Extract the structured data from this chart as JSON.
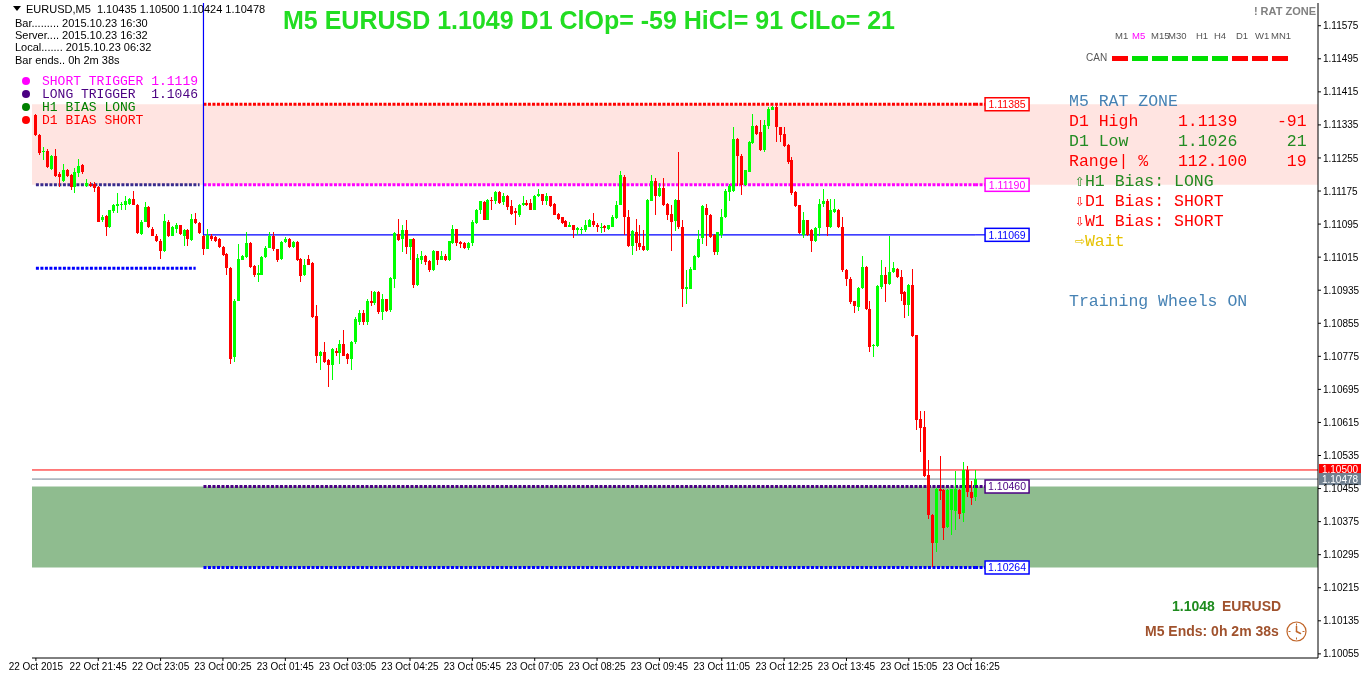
{
  "chart_data": {
    "type": "candlestick",
    "title": "M5 EURUSD 1.1049 D1 ClOp= -59 HiCl= 91 ClLo= 21",
    "x": [
      "2015-10-22T20:25",
      "2015-10-22T20:30",
      "2015-10-22T20:35",
      "2015-10-22T20:40",
      "2015-10-22T20:45",
      "2015-10-22T20:50",
      "2015-10-22T20:55",
      "2015-10-22T21:00",
      "2015-10-22T21:05",
      "2015-10-22T21:10",
      "2015-10-22T21:15",
      "2015-10-22T21:20",
      "2015-10-22T21:25",
      "2015-10-22T21:30",
      "2015-10-22T21:35",
      "2015-10-22T21:40",
      "2015-10-22T21:45",
      "2015-10-22T21:50",
      "2015-10-22T21:55",
      "2015-10-22T22:00",
      "2015-10-22T22:05",
      "2015-10-22T22:10",
      "2015-10-22T22:15",
      "2015-10-22T22:20",
      "2015-10-22T22:25",
      "2015-10-22T22:30",
      "2015-10-22T22:35",
      "2015-10-22T22:40",
      "2015-10-22T22:45",
      "2015-10-22T22:50",
      "2015-10-22T22:55",
      "2015-10-22T23:00",
      "2015-10-22T23:05",
      "2015-10-22T23:10",
      "2015-10-22T23:15",
      "2015-10-22T23:20",
      "2015-10-22T23:25",
      "2015-10-22T23:30",
      "2015-10-22T23:35",
      "2015-10-22T23:40",
      "2015-10-22T23:45",
      "2015-10-22T23:50",
      "2015-10-22T23:55",
      "2015-10-23T00:00",
      "2015-10-23T00:05",
      "2015-10-23T00:10",
      "2015-10-23T00:15",
      "2015-10-23T00:20",
      "2015-10-23T00:25",
      "2015-10-23T00:30",
      "2015-10-23T00:35",
      "2015-10-23T00:40",
      "2015-10-23T00:45",
      "2015-10-23T00:50",
      "2015-10-23T00:55",
      "2015-10-23T01:00",
      "2015-10-23T01:05",
      "2015-10-23T01:10",
      "2015-10-23T01:15",
      "2015-10-23T01:20",
      "2015-10-23T01:25",
      "2015-10-23T01:30",
      "2015-10-23T01:35",
      "2015-10-23T01:40",
      "2015-10-23T01:45",
      "2015-10-23T01:50",
      "2015-10-23T01:55",
      "2015-10-23T02:00",
      "2015-10-23T02:05",
      "2015-10-23T02:10",
      "2015-10-23T02:15",
      "2015-10-23T02:20",
      "2015-10-23T02:25",
      "2015-10-23T02:30",
      "2015-10-23T02:35",
      "2015-10-23T02:40",
      "2015-10-23T02:45",
      "2015-10-23T02:50",
      "2015-10-23T02:55",
      "2015-10-23T03:00",
      "2015-10-23T03:05",
      "2015-10-23T03:10",
      "2015-10-23T03:15",
      "2015-10-23T03:20",
      "2015-10-23T03:25",
      "2015-10-23T03:30",
      "2015-10-23T03:35",
      "2015-10-23T03:40",
      "2015-10-23T03:45",
      "2015-10-23T03:50",
      "2015-10-23T03:55",
      "2015-10-23T04:00",
      "2015-10-23T04:05",
      "2015-10-23T04:10",
      "2015-10-23T04:15",
      "2015-10-23T04:20",
      "2015-10-23T04:25",
      "2015-10-23T04:30",
      "2015-10-23T04:35",
      "2015-10-23T04:40",
      "2015-10-23T04:45",
      "2015-10-23T04:50",
      "2015-10-23T04:55",
      "2015-10-23T05:00",
      "2015-10-23T05:05",
      "2015-10-23T05:10",
      "2015-10-23T05:15",
      "2015-10-23T05:20",
      "2015-10-23T05:25",
      "2015-10-23T05:30",
      "2015-10-23T05:35",
      "2015-10-23T05:40",
      "2015-10-23T05:45",
      "2015-10-23T05:50",
      "2015-10-23T05:55",
      "2015-10-23T06:00",
      "2015-10-23T06:05",
      "2015-10-23T06:10",
      "2015-10-23T06:15",
      "2015-10-23T06:20",
      "2015-10-23T06:25",
      "2015-10-23T06:30",
      "2015-10-23T06:35",
      "2015-10-23T06:40",
      "2015-10-23T06:45",
      "2015-10-23T06:50",
      "2015-10-23T06:55",
      "2015-10-23T07:00",
      "2015-10-23T07:05",
      "2015-10-23T07:10",
      "2015-10-23T07:15",
      "2015-10-23T07:20",
      "2015-10-23T07:25",
      "2015-10-23T07:30",
      "2015-10-23T07:35",
      "2015-10-23T07:40",
      "2015-10-23T07:45",
      "2015-10-23T07:50",
      "2015-10-23T07:55",
      "2015-10-23T08:00",
      "2015-10-23T08:05",
      "2015-10-23T08:10",
      "2015-10-23T08:15",
      "2015-10-23T08:20",
      "2015-10-23T08:25",
      "2015-10-23T08:30",
      "2015-10-23T08:35",
      "2015-10-23T08:40",
      "2015-10-23T08:45",
      "2015-10-23T08:50",
      "2015-10-23T08:55",
      "2015-10-23T09:00",
      "2015-10-23T09:05",
      "2015-10-23T09:10",
      "2015-10-23T09:15",
      "2015-10-23T09:20",
      "2015-10-23T09:25",
      "2015-10-23T09:30",
      "2015-10-23T09:35",
      "2015-10-23T09:40",
      "2015-10-23T09:45",
      "2015-10-23T09:50",
      "2015-10-23T09:55",
      "2015-10-23T10:00",
      "2015-10-23T10:05",
      "2015-10-23T10:10",
      "2015-10-23T10:15",
      "2015-10-23T10:20",
      "2015-10-23T10:25",
      "2015-10-23T10:30",
      "2015-10-23T10:35",
      "2015-10-23T10:40",
      "2015-10-23T10:45",
      "2015-10-23T10:50",
      "2015-10-23T10:55",
      "2015-10-23T11:00",
      "2015-10-23T11:05",
      "2015-10-23T11:10",
      "2015-10-23T11:15",
      "2015-10-23T11:20",
      "2015-10-23T11:25",
      "2015-10-23T11:30",
      "2015-10-23T11:35",
      "2015-10-23T11:40",
      "2015-10-23T11:45",
      "2015-10-23T11:50",
      "2015-10-23T11:55",
      "2015-10-23T12:00",
      "2015-10-23T12:05",
      "2015-10-23T12:10",
      "2015-10-23T12:15",
      "2015-10-23T12:20",
      "2015-10-23T12:25",
      "2015-10-23T12:30",
      "2015-10-23T12:35",
      "2015-10-23T12:40",
      "2015-10-23T12:45",
      "2015-10-23T12:50",
      "2015-10-23T12:55",
      "2015-10-23T13:00",
      "2015-10-23T13:05",
      "2015-10-23T13:10",
      "2015-10-23T13:15",
      "2015-10-23T13:20",
      "2015-10-23T13:25",
      "2015-10-23T13:30",
      "2015-10-23T13:35",
      "2015-10-23T13:40",
      "2015-10-23T13:45",
      "2015-10-23T13:50",
      "2015-10-23T13:55",
      "2015-10-23T14:00",
      "2015-10-23T14:05",
      "2015-10-23T14:10",
      "2015-10-23T14:15",
      "2015-10-23T14:20",
      "2015-10-23T14:25",
      "2015-10-23T14:30",
      "2015-10-23T14:35",
      "2015-10-23T14:40",
      "2015-10-23T14:45",
      "2015-10-23T14:50",
      "2015-10-23T14:55",
      "2015-10-23T15:00",
      "2015-10-23T15:05",
      "2015-10-23T15:10",
      "2015-10-23T15:15",
      "2015-10-23T15:20",
      "2015-10-23T15:25",
      "2015-10-23T15:30",
      "2015-10-23T15:35",
      "2015-10-23T15:40",
      "2015-10-23T15:45",
      "2015-10-23T15:50",
      "2015-10-23T15:55",
      "2015-10-23T16:00",
      "2015-10-23T16:05",
      "2015-10-23T16:10",
      "2015-10-23T16:15",
      "2015-10-23T16:20",
      "2015-10-23T16:25",
      "2015-10-23T16:30"
    ],
    "ohlc": [
      [
        1.11359,
        1.11362,
        1.11309,
        1.11311
      ],
      [
        1.11311,
        1.11313,
        1.11263,
        1.11267
      ],
      [
        1.11269,
        1.11281,
        1.11249,
        1.11273
      ],
      [
        1.11273,
        1.11277,
        1.1123,
        1.11233
      ],
      [
        1.11229,
        1.11263,
        1.11225,
        1.11259
      ],
      [
        1.11259,
        1.11277,
        1.11209,
        1.11211
      ],
      [
        1.11217,
        1.11221,
        1.11184,
        1.11209
      ],
      [
        1.11199,
        1.11241,
        1.11196,
        1.11225
      ],
      [
        1.11225,
        1.11229,
        1.11209,
        1.11211
      ],
      [
        1.11214,
        1.11217,
        1.11178,
        1.11184
      ],
      [
        1.11184,
        1.1123,
        1.11171,
        1.11222
      ],
      [
        1.11219,
        1.11253,
        1.11209,
        1.11235
      ],
      [
        1.11238,
        1.11241,
        1.11217,
        1.11221
      ],
      [
        1.11188,
        1.11205,
        1.11184,
        1.11194
      ],
      [
        1.11192,
        1.11196,
        1.11184,
        1.11188
      ],
      [
        1.11192,
        1.11197,
        1.11172,
        1.11182
      ],
      [
        1.11184,
        1.11187,
        1.111,
        1.11101
      ],
      [
        1.11104,
        1.11116,
        1.11101,
        1.11113
      ],
      [
        1.11114,
        1.11116,
        1.11066,
        1.11088
      ],
      [
        1.11088,
        1.1113,
        1.11085,
        1.11128
      ],
      [
        1.11126,
        1.11144,
        1.11122,
        1.11142
      ],
      [
        1.11138,
        1.11171,
        1.11121,
        1.11143
      ],
      [
        1.1114,
        1.11148,
        1.11128,
        1.11144
      ],
      [
        1.1114,
        1.11162,
        1.1113,
        1.11151
      ],
      [
        1.11144,
        1.11158,
        1.1114,
        1.11155
      ],
      [
        1.11155,
        1.11174,
        1.1114,
        1.11142
      ],
      [
        1.11142,
        1.11143,
        1.11071,
        1.11074
      ],
      [
        1.11071,
        1.11104,
        1.11069,
        1.11101
      ],
      [
        1.11101,
        1.11148,
        1.111,
        1.11136
      ],
      [
        1.11136,
        1.11138,
        1.11085,
        1.11088
      ],
      [
        1.11084,
        1.11088,
        1.11066,
        1.11067
      ],
      [
        1.11067,
        1.11071,
        1.11051,
        1.11054
      ],
      [
        1.11055,
        1.11059,
        1.11011,
        1.11029
      ],
      [
        1.11029,
        1.1112,
        1.11027,
        1.11103
      ],
      [
        1.11101,
        1.11104,
        1.11063,
        1.11067
      ],
      [
        1.11067,
        1.1109,
        1.11066,
        1.11088
      ],
      [
        1.11084,
        1.11098,
        1.11074,
        1.11092
      ],
      [
        1.11092,
        1.11093,
        1.11069,
        1.11071
      ],
      [
        1.11067,
        1.11084,
        1.11041,
        1.11081
      ],
      [
        1.11081,
        1.11084,
        1.11041,
        1.11058
      ],
      [
        1.11057,
        1.1112,
        1.11055,
        1.11108
      ],
      [
        1.11108,
        1.11122,
        1.11095,
        1.11097
      ],
      [
        1.11097,
        1.111,
        1.11071,
        1.11074
      ],
      [
        1.11067,
        1.11069,
        1.11021,
        1.11034
      ],
      [
        1.11035,
        1.11084,
        1.11034,
        1.11069
      ],
      [
        1.11067,
        1.11071,
        1.11055,
        1.11059
      ],
      [
        1.11063,
        1.11066,
        1.11051,
        1.11055
      ],
      [
        1.11059,
        1.11061,
        1.11037,
        1.11039
      ],
      [
        1.11039,
        1.11042,
        1.11018,
        1.11021
      ],
      [
        1.11022,
        1.11024,
        1.10971,
        1.10988
      ],
      [
        1.10988,
        1.10991,
        1.10757,
        1.10769
      ],
      [
        1.10773,
        1.10914,
        1.10761,
        1.1091
      ],
      [
        1.1091,
        1.11047,
        1.10908,
        1.11011
      ],
      [
        1.11009,
        1.11019,
        1.11007,
        1.11017
      ],
      [
        1.11015,
        1.11076,
        1.11013,
        1.1105
      ],
      [
        1.1105,
        1.11051,
        1.10988,
        1.10991
      ],
      [
        1.10993,
        1.10995,
        1.10967,
        1.10971
      ],
      [
        1.10972,
        1.10995,
        1.10955,
        1.10977
      ],
      [
        1.10972,
        1.11017,
        1.10971,
        1.11015
      ],
      [
        1.11015,
        1.11041,
        1.11013,
        1.11038
      ],
      [
        1.11038,
        1.11076,
        1.11037,
        1.11066
      ],
      [
        1.11066,
        1.11076,
        1.11031,
        1.11034
      ],
      [
        1.11034,
        1.11035,
        1.11003,
        1.11009
      ],
      [
        1.11011,
        1.11055,
        1.11009,
        1.11051
      ],
      [
        1.11051,
        1.11063,
        1.1105,
        1.11059
      ],
      [
        1.11059,
        1.11061,
        1.11037,
        1.11039
      ],
      [
        1.11039,
        1.11055,
        1.11037,
        1.11051
      ],
      [
        1.11051,
        1.11055,
        1.11005,
        1.11007
      ],
      [
        1.11011,
        1.11013,
        1.10956,
        1.10969
      ],
      [
        1.10971,
        1.11011,
        1.10969,
        1.10997
      ],
      [
        1.11011,
        1.11021,
        1.10995,
        1.10997
      ],
      [
        1.11001,
        1.11003,
        1.10868,
        1.1087
      ],
      [
        1.10872,
        1.109,
        1.1076,
        1.10777
      ],
      [
        1.10777,
        1.10789,
        1.10741,
        1.10785
      ],
      [
        1.10785,
        1.1081,
        1.1076,
        1.10761
      ],
      [
        1.10765,
        1.10769,
        1.10701,
        1.10753
      ],
      [
        1.10753,
        1.10794,
        1.10717,
        1.10792
      ],
      [
        1.10789,
        1.10794,
        1.10777,
        1.10784
      ],
      [
        1.10784,
        1.10814,
        1.10757,
        1.10806
      ],
      [
        1.10806,
        1.10838,
        1.10775,
        1.10777
      ],
      [
        1.10781,
        1.10784,
        1.10757,
        1.10769
      ],
      [
        1.10769,
        1.10812,
        1.10741,
        1.1081
      ],
      [
        1.1081,
        1.1087,
        1.10805,
        1.10866
      ],
      [
        1.10858,
        1.10886,
        1.1085,
        1.1088
      ],
      [
        1.1088,
        1.10886,
        1.1085,
        1.10858
      ],
      [
        1.10858,
        1.10913,
        1.10852,
        1.1091
      ],
      [
        1.1091,
        1.10934,
        1.10896,
        1.10904
      ],
      [
        1.10904,
        1.10932,
        1.109,
        1.1093
      ],
      [
        1.1093,
        1.10932,
        1.10878,
        1.10882
      ],
      [
        1.10882,
        1.10925,
        1.10862,
        1.10913
      ],
      [
        1.10913,
        1.10914,
        1.10882,
        1.10885
      ],
      [
        1.10886,
        1.10968,
        1.10882,
        1.10964
      ],
      [
        1.10963,
        1.11076,
        1.1094,
        1.11073
      ],
      [
        1.11072,
        1.11108,
        1.11055,
        1.11057
      ],
      [
        1.11059,
        1.11092,
        1.11027,
        1.1108
      ],
      [
        1.1108,
        1.11104,
        1.11022,
        1.11039
      ],
      [
        1.11039,
        1.1106,
        1.11007,
        1.11059
      ],
      [
        1.11059,
        1.11061,
        1.1094,
        1.10947
      ],
      [
        1.10947,
        1.11022,
        1.10944,
        1.11013
      ],
      [
        1.11009,
        1.11029,
        1.10999,
        1.11017
      ],
      [
        1.11017,
        1.11019,
        1.10995,
        1.11003
      ],
      [
        1.11005,
        1.11007,
        1.10979,
        1.10983
      ],
      [
        1.10985,
        1.11033,
        1.10981,
        1.11031
      ],
      [
        1.11029,
        1.11031,
        1.10995,
        1.11009
      ],
      [
        1.11009,
        1.11029,
        1.11007,
        1.11017
      ],
      [
        1.11017,
        1.11022,
        1.11005,
        1.11009
      ],
      [
        1.11009,
        1.11055,
        1.11005,
        1.11053
      ],
      [
        1.11049,
        1.11092,
        1.11047,
        1.11082
      ],
      [
        1.11082,
        1.11084,
        1.11041,
        1.11049
      ],
      [
        1.11051,
        1.11054,
        1.11038,
        1.11047
      ],
      [
        1.1105,
        1.11051,
        1.11035,
        1.11037
      ],
      [
        1.11037,
        1.11051,
        1.11033,
        1.1105
      ],
      [
        1.11049,
        1.11104,
        1.11041,
        1.11101
      ],
      [
        1.11097,
        1.11132,
        1.11095,
        1.1113
      ],
      [
        1.11128,
        1.11152,
        1.1112,
        1.1115
      ],
      [
        1.11148,
        1.1115,
        1.11104,
        1.11106
      ],
      [
        1.11106,
        1.11156,
        1.11104,
        1.11154
      ],
      [
        1.11154,
        1.1116,
        1.11128,
        1.1115
      ],
      [
        1.11152,
        1.11176,
        1.11144,
        1.11172
      ],
      [
        1.11172,
        1.11174,
        1.11144,
        1.11146
      ],
      [
        1.11148,
        1.1117,
        1.1114,
        1.11164
      ],
      [
        1.11164,
        1.11166,
        1.11128,
        1.11136
      ],
      [
        1.11138,
        1.11154,
        1.11118,
        1.1112
      ],
      [
        1.11126,
        1.11134,
        1.11092,
        1.11121
      ],
      [
        1.11118,
        1.11144,
        1.11113,
        1.11142
      ],
      [
        1.11142,
        1.11164,
        1.11138,
        1.11146
      ],
      [
        1.11146,
        1.11154,
        1.11138,
        1.1114
      ],
      [
        1.11146,
        1.11156,
        1.11128,
        1.1113
      ],
      [
        1.1113,
        1.11166,
        1.11128,
        1.11164
      ],
      [
        1.11163,
        1.1118,
        1.1116,
        1.11167
      ],
      [
        1.11167,
        1.11168,
        1.11142,
        1.11152
      ],
      [
        1.11152,
        1.1117,
        1.1114,
        1.11162
      ],
      [
        1.11162,
        1.11164,
        1.11136,
        1.11138
      ],
      [
        1.11144,
        1.11146,
        1.11116,
        1.11117
      ],
      [
        1.11119,
        1.11121,
        1.11105,
        1.11108
      ],
      [
        1.11112,
        1.11113,
        1.11096,
        1.11097
      ],
      [
        1.11102,
        1.11104,
        1.11088,
        1.11089
      ],
      [
        1.11089,
        1.111,
        1.11088,
        1.11092
      ],
      [
        1.11092,
        1.11094,
        1.11061,
        1.1108
      ],
      [
        1.1108,
        1.11089,
        1.11068,
        1.11085
      ],
      [
        1.1108,
        1.11089,
        1.11072,
        1.11084
      ],
      [
        1.1108,
        1.11104,
        1.11076,
        1.11092
      ],
      [
        1.11089,
        1.11108,
        1.11088,
        1.11104
      ],
      [
        1.11102,
        1.11121,
        1.11089,
        1.11094
      ],
      [
        1.11094,
        1.11097,
        1.11077,
        1.11089
      ],
      [
        1.11088,
        1.11097,
        1.11073,
        1.11089
      ],
      [
        1.1109,
        1.11094,
        1.11076,
        1.11085
      ],
      [
        1.11084,
        1.11094,
        1.1108,
        1.11092
      ],
      [
        1.11089,
        1.11118,
        1.11088,
        1.11112
      ],
      [
        1.11109,
        1.11152,
        1.11108,
        1.11142
      ],
      [
        1.11142,
        1.11223,
        1.1114,
        1.11213
      ],
      [
        1.1121,
        1.11213,
        1.11068,
        1.11112
      ],
      [
        1.11112,
        1.11128,
        1.11039,
        1.11041
      ],
      [
        1.11041,
        1.1108,
        1.11019,
        1.11078
      ],
      [
        1.11077,
        1.11108,
        1.1103,
        1.1105
      ],
      [
        1.1105,
        1.11092,
        1.11033,
        1.11039
      ],
      [
        1.11041,
        1.1108,
        1.1103,
        1.11033
      ],
      [
        1.11033,
        1.11156,
        1.11031,
        1.11154
      ],
      [
        1.11152,
        1.11213,
        1.1115,
        1.112
      ],
      [
        1.112,
        1.11207,
        1.11116,
        1.11164
      ],
      [
        1.11162,
        1.11195,
        1.1116,
        1.11183
      ],
      [
        1.11183,
        1.11207,
        1.11138,
        1.1114
      ],
      [
        1.11144,
        1.11146,
        1.11106,
        1.11116
      ],
      [
        1.1112,
        1.1114,
        1.11031,
        1.11101
      ],
      [
        1.11102,
        1.11156,
        1.11078,
        1.11154
      ],
      [
        1.11154,
        1.11269,
        1.11084,
        1.11088
      ],
      [
        1.11088,
        1.11104,
        1.10894,
        1.10939
      ],
      [
        1.10939,
        1.10983,
        1.10902,
        1.10942
      ],
      [
        1.10939,
        1.10991,
        1.10937,
        1.10987
      ],
      [
        1.10985,
        1.11021,
        1.10983,
        1.11017
      ],
      [
        1.11015,
        1.1108,
        1.11013,
        1.11059
      ],
      [
        1.11061,
        1.11142,
        1.11047,
        1.11138
      ],
      [
        1.11135,
        1.11144,
        1.11043,
        1.11116
      ],
      [
        1.11118,
        1.1112,
        1.11061,
        1.11063
      ],
      [
        1.11069,
        1.11071,
        1.11021,
        1.11027
      ],
      [
        1.11027,
        1.11077,
        1.11019,
        1.11076
      ],
      [
        1.11069,
        1.11132,
        1.11061,
        1.11113
      ],
      [
        1.11112,
        1.11179,
        1.11109,
        1.11176
      ],
      [
        1.11172,
        1.11192,
        1.11152,
        1.11188
      ],
      [
        1.11174,
        1.11329,
        1.11172,
        1.11301
      ],
      [
        1.11301,
        1.11303,
        1.11188,
        1.11259
      ],
      [
        1.11259,
        1.11265,
        1.11166,
        1.1119
      ],
      [
        1.1119,
        1.11227,
        1.11188,
        1.11225
      ],
      [
        1.11222,
        1.11295,
        1.11221,
        1.11293
      ],
      [
        1.11292,
        1.11362,
        1.11289,
        1.11333
      ],
      [
        1.11333,
        1.11335,
        1.11311,
        1.11313
      ],
      [
        1.11317,
        1.11346,
        1.11273,
        1.11275
      ],
      [
        1.11275,
        1.11346,
        1.11269,
        1.11335
      ],
      [
        1.11333,
        1.11378,
        1.11325,
        1.11374
      ],
      [
        1.11372,
        1.1138,
        1.1137,
        1.11378
      ],
      [
        1.11378,
        1.11385,
        1.11293,
        1.11329
      ],
      [
        1.11329,
        1.11331,
        1.11293,
        1.11311
      ],
      [
        1.11313,
        1.11329,
        1.11281,
        1.11285
      ],
      [
        1.11287,
        1.11289,
        1.11241,
        1.11246
      ],
      [
        1.11251,
        1.11257,
        1.11166,
        1.11171
      ],
      [
        1.11172,
        1.11174,
        1.11136,
        1.11138
      ],
      [
        1.1114,
        1.11142,
        1.11071,
        1.11073
      ],
      [
        1.11069,
        1.11124,
        1.11061,
        1.11104
      ],
      [
        1.11104,
        1.11106,
        1.11067,
        1.11069
      ],
      [
        1.1108,
        1.11084,
        1.11027,
        1.11055
      ],
      [
        1.11055,
        1.11088,
        1.11051,
        1.11085
      ],
      [
        1.11085,
        1.11155,
        1.11067,
        1.11144
      ],
      [
        1.11144,
        1.11179,
        1.11136,
        1.11152
      ],
      [
        1.11152,
        1.11155,
        1.11067,
        1.11088
      ],
      [
        1.11088,
        1.11155,
        1.11085,
        1.11128
      ],
      [
        1.11124,
        1.11155,
        1.11122,
        1.11132
      ],
      [
        1.1113,
        1.11132,
        1.11085,
        1.11088
      ],
      [
        1.11089,
        1.11112,
        1.1098,
        1.10983
      ],
      [
        1.10983,
        1.10987,
        1.10945,
        1.10963
      ],
      [
        1.10963,
        1.10967,
        1.10902,
        1.10906
      ],
      [
        1.10908,
        1.1091,
        1.10879,
        1.10897
      ],
      [
        1.10895,
        1.10943,
        1.10884,
        1.1094
      ],
      [
        1.1094,
        1.11017,
        1.10939,
        1.10991
      ],
      [
        1.10991,
        1.10993,
        1.10888,
        1.1089
      ],
      [
        1.1089,
        1.1091,
        1.10785,
        1.10797
      ],
      [
        1.108,
        1.10806,
        1.10773,
        1.10803
      ],
      [
        1.108,
        1.10947,
        1.10797,
        1.10944
      ],
      [
        1.10942,
        1.11009,
        1.10939,
        1.10971
      ],
      [
        1.10971,
        1.10991,
        1.10906,
        1.10951
      ],
      [
        1.10951,
        1.11067,
        1.10947,
        1.1098
      ],
      [
        1.1098,
        1.11003,
        1.10977,
        1.10988
      ],
      [
        1.10987,
        1.10988,
        1.10964,
        1.10967
      ],
      [
        1.10967,
        1.10985,
        1.1091,
        1.10926
      ],
      [
        1.1093,
        1.10932,
        1.10868,
        1.10898
      ],
      [
        1.10898,
        1.10951,
        1.10872,
        1.10948
      ],
      [
        1.10948,
        1.10987,
        1.10822,
        1.10824
      ],
      [
        1.10826,
        1.10827,
        1.10596,
        1.1062
      ],
      [
        1.10624,
        1.10642,
        1.10544,
        1.10602
      ],
      [
        1.10604,
        1.10642,
        1.10483,
        1.10486
      ],
      [
        1.10487,
        1.10523,
        1.10382,
        1.10392
      ],
      [
        1.10392,
        1.10394,
        1.10264,
        1.10324
      ],
      [
        1.10324,
        1.10457,
        1.10302,
        1.10455
      ],
      [
        1.10455,
        1.10534,
        1.10427,
        1.10448
      ],
      [
        1.10451,
        1.10453,
        1.1033,
        1.1036
      ],
      [
        1.10362,
        1.10453,
        1.1036,
        1.10451
      ],
      [
        1.10403,
        1.10455,
        1.10342,
        1.10453
      ],
      [
        1.10401,
        1.10497,
        1.10354,
        1.10453
      ],
      [
        1.10451,
        1.10453,
        1.10382,
        1.10394
      ],
      [
        1.10397,
        1.10519,
        1.10374,
        1.10501
      ],
      [
        1.10501,
        1.1051,
        1.10435,
        1.10447
      ],
      [
        1.10447,
        1.10473,
        1.10416,
        1.10432
      ],
      [
        1.10435,
        1.105,
        1.10424,
        1.10478
      ]
    ],
    "colors": [
      "#ff0000",
      "#ff0000",
      "#00ff00",
      "#ff0000",
      "#00ff00",
      "#ff0000",
      "#ff0000",
      "#00ff00",
      "#ff0000",
      "#ff0000",
      "#00ff00",
      "#00ff00",
      "#ff0000",
      "#00ff00",
      "#ff0000",
      "#ff0000",
      "#ff0000",
      "#00ff00",
      "#ff0000",
      "#00ff00",
      "#00ff00",
      "#00ff00",
      "#00ff00",
      "#00ff00",
      "#00ff00",
      "#ff0000",
      "#ff0000",
      "#00ff00",
      "#00ff00",
      "#ff0000",
      "#ff0000",
      "#ff0000",
      "#ff0000",
      "#00ff00",
      "#ff0000",
      "#00ff00",
      "#00ff00",
      "#ff0000",
      "#00ff00",
      "#ff0000",
      "#00ff00",
      "#ff0000",
      "#ff0000",
      "#ff0000",
      "#00ff00",
      "#ff0000",
      "#ff0000",
      "#ff0000",
      "#ff0000",
      "#ff0000",
      "#ff0000",
      "#00ff00",
      "#00ff00",
      "#00ff00",
      "#00ff00",
      "#ff0000",
      "#ff0000",
      "#00ff00",
      "#00ff00",
      "#00ff00",
      "#00ff00",
      "#ff0000",
      "#ff0000",
      "#00ff00",
      "#00ff00",
      "#ff0000",
      "#00ff00",
      "#ff0000",
      "#ff0000",
      "#00ff00",
      "#ff0000",
      "#ff0000",
      "#ff0000",
      "#00ff00",
      "#ff0000",
      "#ff0000",
      "#00ff00",
      "#ff0000",
      "#00ff00",
      "#ff0000",
      "#ff0000",
      "#00ff00",
      "#00ff00",
      "#00ff00",
      "#ff0000",
      "#00ff00",
      "#ff0000",
      "#00ff00",
      "#ff0000",
      "#00ff00",
      "#ff0000",
      "#00ff00",
      "#00ff00",
      "#ff0000",
      "#00ff00",
      "#ff0000",
      "#00ff00",
      "#ff0000",
      "#00ff00",
      "#00ff00",
      "#ff0000",
      "#ff0000",
      "#00ff00",
      "#ff0000",
      "#00ff00",
      "#ff0000",
      "#00ff00",
      "#00ff00",
      "#ff0000",
      "#ff0000",
      "#ff0000",
      "#00ff00",
      "#00ff00",
      "#00ff00",
      "#00ff00",
      "#ff0000",
      "#00ff00",
      "#ff0000",
      "#00ff00",
      "#ff0000",
      "#00ff00",
      "#ff0000",
      "#ff0000",
      "#ff0000",
      "#00ff00",
      "#00ff00",
      "#ff0000",
      "#ff0000",
      "#00ff00",
      "#00ff00",
      "#ff0000",
      "#00ff00",
      "#ff0000",
      "#ff0000",
      "#ff0000",
      "#ff0000",
      "#ff0000",
      "#00ff00",
      "#ff0000",
      "#00ff00",
      "#00ff00",
      "#00ff00",
      "#00ff00",
      "#ff0000",
      "#ff0000",
      "#00ff00",
      "#ff0000",
      "#00ff00",
      "#00ff00",
      "#00ff00",
      "#00ff00",
      "#ff0000",
      "#ff0000",
      "#00ff00",
      "#ff0000",
      "#ff0000",
      "#ff0000",
      "#00ff00",
      "#00ff00",
      "#ff0000",
      "#00ff00",
      "#ff0000",
      "#ff0000",
      "#ff0000",
      "#00ff00",
      "#ff0000",
      "#ff0000",
      "#00ff00",
      "#00ff00",
      "#00ff00",
      "#00ff00",
      "#00ff00",
      "#ff0000",
      "#ff0000",
      "#ff0000",
      "#00ff00",
      "#00ff00",
      "#00ff00",
      "#00ff00",
      "#00ff00",
      "#ff0000",
      "#ff0000",
      "#00ff00",
      "#00ff00",
      "#00ff00",
      "#ff0000",
      "#ff0000",
      "#00ff00",
      "#00ff00",
      "#00ff00",
      "#ff0000",
      "#ff0000",
      "#ff0000",
      "#ff0000",
      "#ff0000",
      "#ff0000",
      "#ff0000",
      "#00ff00",
      "#ff0000",
      "#ff0000",
      "#00ff00",
      "#00ff00",
      "#00ff00",
      "#ff0000",
      "#00ff00",
      "#00ff00",
      "#ff0000",
      "#ff0000",
      "#ff0000",
      "#ff0000",
      "#ff0000",
      "#00ff00",
      "#00ff00",
      "#ff0000",
      "#ff0000",
      "#00ff00",
      "#00ff00",
      "#00ff00",
      "#ff0000",
      "#00ff00",
      "#00ff00",
      "#ff0000",
      "#ff0000",
      "#ff0000",
      "#00ff00",
      "#ff0000",
      "#ff0000",
      "#ff0000",
      "#ff0000",
      "#ff0000",
      "#ff0000",
      "#00ff00",
      "#ff0000",
      "#ff0000",
      "#00ff00",
      "#00ff00",
      "#00ff00",
      "#ff0000",
      "#00ff00",
      "#ff0000",
      "#ff0000",
      "#00ff00"
    ],
    "xlim": [
      "2015-10-22T20:20",
      "2015-10-23T23:50"
    ],
    "xticks": [
      {
        "value": "2015-10-22T20:25",
        "label": "22 Oct 2015"
      },
      {
        "value": "2015-10-22T21:45",
        "label": "22 Oct 21:45"
      },
      {
        "value": "2015-10-22T23:05",
        "label": "22 Oct 23:05"
      },
      {
        "value": "2015-10-23T00:25",
        "label": "23 Oct 00:25"
      },
      {
        "value": "2015-10-23T01:45",
        "label": "23 Oct 01:45"
      },
      {
        "value": "2015-10-23T03:05",
        "label": "23 Oct 03:05"
      },
      {
        "value": "2015-10-23T04:25",
        "label": "23 Oct 04:25"
      },
      {
        "value": "2015-10-23T05:45",
        "label": "23 Oct 05:45"
      },
      {
        "value": "2015-10-23T07:05",
        "label": "23 Oct 07:05"
      },
      {
        "value": "2015-10-23T08:25",
        "label": "23 Oct 08:25"
      },
      {
        "value": "2015-10-23T09:45",
        "label": "23 Oct 09:45"
      },
      {
        "value": "2015-10-23T11:05",
        "label": "23 Oct 11:05"
      },
      {
        "value": "2015-10-23T12:25",
        "label": "23 Oct 12:25"
      },
      {
        "value": "2015-10-23T13:45",
        "label": "23 Oct 13:45"
      },
      {
        "value": "2015-10-23T15:05",
        "label": "23 Oct 15:05"
      },
      {
        "value": "2015-10-23T16:25",
        "label": "23 Oct 16:25"
      }
    ],
    "ylim": [
      1.10045,
      1.1163
    ],
    "yticks": [
      1.10055,
      1.10135,
      1.10215,
      1.10295,
      1.10375,
      1.10455,
      1.10535,
      1.10615,
      1.10695,
      1.10775,
      1.10855,
      1.10935,
      1.11015,
      1.11095,
      1.11175,
      1.11255,
      1.11335,
      1.11415,
      1.11495,
      1.11575
    ],
    "legend": "right",
    "series": [
      {
        "type": "line",
        "name": "1.11385",
        "color": "#ff0000",
        "line_style": "dotted",
        "x": [
          "2015-10-23T00:00",
          "2015-10-23T16:30"
        ],
        "values": [
          1.11385,
          1.11385
        ]
      },
      {
        "type": "line",
        "name": "1.11190",
        "color": "#ff00ff",
        "line_style": "dotted",
        "x": [
          "2015-10-23T00:00",
          "2015-10-23T16:30"
        ],
        "values": [
          1.1119,
          1.1119
        ]
      },
      {
        "type": "line",
        "name": "1.11069",
        "color": "#0000ff",
        "line_style": "solid",
        "x": [
          "2015-10-23T00:00",
          "2015-10-23T00:00",
          "2015-10-23T16:30"
        ],
        "values": [
          1.1163,
          1.11069,
          1.11069
        ]
      },
      {
        "type": "line",
        "name": "1.10460",
        "color": "#4b0082",
        "line_style": "dotted",
        "x": [
          "2015-10-23T00:00",
          "2015-10-23T16:30"
        ],
        "values": [
          1.1046,
          1.1046
        ]
      },
      {
        "type": "line",
        "name": "1.10264",
        "color": "#0000ff",
        "line_style": "dotted",
        "x": [
          "2015-10-23T00:00",
          "2015-10-23T16:30"
        ],
        "values": [
          1.10264,
          1.10264
        ]
      },
      {
        "type": "line",
        "color": "#3a2b8c",
        "line_style": "dotted",
        "x": [
          "2015-10-22T20:25",
          "2015-10-22T23:55"
        ],
        "values": [
          1.1119,
          1.1119
        ]
      },
      {
        "type": "line",
        "color": "#0000ff",
        "line_style": "dotted",
        "x": [
          "2015-10-22T20:25",
          "2015-10-22T23:50"
        ],
        "values": [
          1.10988,
          1.10988
        ]
      }
    ],
    "ref_lines": [
      {
        "axis": "y",
        "value": 1.105,
        "label": "1.10500",
        "color": "#ff0000"
      },
      {
        "axis": "y",
        "value": 1.10478,
        "label": "1.10478",
        "color": "#708090"
      }
    ],
    "bands": [
      {
        "axis": "y",
        "from": 1.1119,
        "to": 1.11385,
        "color": "#ffe4e1"
      },
      {
        "axis": "y",
        "from": 1.10264,
        "to": 1.1046,
        "color": "#8fbc8f"
      }
    ],
    "annotations": [
      "EURUSD,M5  1.10435 1.10500 1.10424 1.10478",
      "Bar......... 2015.10.23 16:30",
      "Server.... 2015.10.23 16:32",
      "Local....... 2015.10.23 06:32",
      "Bar ends.. 0h 2m 38s",
      "SHORT TRIGGER 1.1119",
      "LONG TRIGGER  1.1046",
      "H1 BIAS LONG",
      "D1 BIAS SHORT",
      "! RAT ZONE",
      "M1",
      "M5",
      "M15",
      "M30",
      "H1",
      "H4",
      "D1",
      "W1",
      "MN1",
      "CAN",
      "M5 RAT ZONE",
      "D1 High    1.1139    -91",
      "D1 Low     1.1026     21",
      "Range| %   112.100    19",
      "⇧H1 Bias: LONG",
      "⇩D1 Bias: SHORT",
      "⇩W1 Bias: SHORT",
      "⇨Wait",
      "Training Wheels ON",
      "1.1048",
      "EURUSD",
      "M5 Ends: 0h 2m 38s"
    ]
  }
}
